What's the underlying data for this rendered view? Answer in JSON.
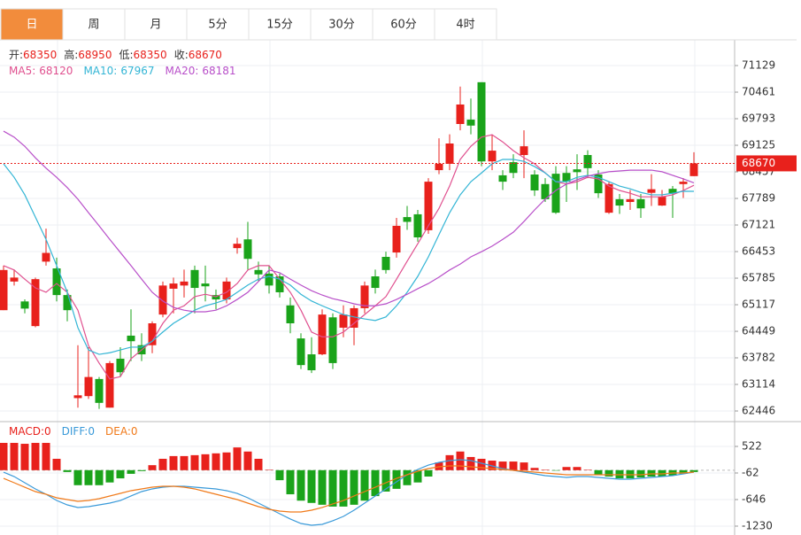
{
  "tabs": [
    "日",
    "周",
    "月",
    "5分",
    "15分",
    "30分",
    "60分",
    "4时"
  ],
  "active_tab": 0,
  "chart_data": [
    {
      "type": "candlestick",
      "header": [
        {
          "label": "开:",
          "value": 68350
        },
        {
          "label": "高:",
          "value": 68950
        },
        {
          "label": "低:",
          "value": 68350
        },
        {
          "label": "收:",
          "value": 68670
        }
      ],
      "up_color": "#e8211c",
      "down_color": "#1aa31a",
      "last_price": 68670,
      "ylim": [
        62201,
        71775
      ],
      "yticks": [
        71129,
        70461,
        69793,
        69125,
        68457,
        67789,
        67121,
        66453,
        65785,
        65117,
        64449,
        63782,
        63114,
        62446
      ],
      "grid": true,
      "open": [
        64980,
        65700,
        65200,
        64580,
        66200,
        66030,
        65360,
        62770,
        62820,
        63250,
        62530,
        63760,
        64340,
        64100,
        64100,
        64870,
        65520,
        65600,
        65990,
        65650,
        65360,
        65250,
        66540,
        66760,
        65990,
        65900,
        65830,
        65100,
        64270,
        63870,
        63870,
        64800,
        64540,
        64540,
        65030,
        65830,
        66320,
        66430,
        67320,
        67390,
        66990,
        68500,
        68660,
        69660,
        69770,
        70710,
        68720,
        68370,
        68700,
        68880,
        68390,
        68150,
        68410,
        68430,
        68520,
        68880,
        68390,
        67430,
        67770,
        67700,
        67770,
        67930,
        67610,
        68030,
        68150,
        68350
      ],
      "high": [
        66100,
        66000,
        65250,
        65800,
        67030,
        66300,
        65500,
        64100,
        64050,
        63300,
        63700,
        64050,
        65000,
        64400,
        64700,
        65700,
        65800,
        66000,
        66100,
        66100,
        65500,
        65800,
        66800,
        67200,
        66200,
        66100,
        65900,
        65300,
        64400,
        64300,
        65000,
        64900,
        65100,
        65100,
        65700,
        66000,
        66450,
        67300,
        67600,
        67500,
        68300,
        69300,
        69400,
        70600,
        70300,
        70710,
        69400,
        68500,
        68900,
        69500,
        68500,
        68300,
        68600,
        68600,
        68900,
        69000,
        68500,
        68200,
        67900,
        68000,
        67900,
        68400,
        68000,
        68100,
        68300,
        68950
      ],
      "low": [
        64980,
        65600,
        64900,
        64550,
        66100,
        65200,
        64700,
        62530,
        62750,
        62500,
        62530,
        63300,
        63700,
        63700,
        63900,
        64800,
        64900,
        65300,
        64900,
        65200,
        65000,
        65150,
        66400,
        66000,
        65700,
        65400,
        65300,
        64400,
        63500,
        63400,
        63850,
        63500,
        64300,
        64100,
        64900,
        65400,
        65900,
        66300,
        67000,
        66700,
        66900,
        68400,
        68500,
        69500,
        69400,
        68600,
        68500,
        68000,
        68300,
        68300,
        67850,
        67700,
        67400,
        67700,
        68000,
        68300,
        67800,
        67400,
        67400,
        67500,
        67300,
        67600,
        67600,
        67300,
        67800,
        68350
      ],
      "close": [
        65990,
        65800,
        65020,
        65760,
        66420,
        65360,
        64980,
        62840,
        63300,
        62650,
        63650,
        63420,
        64200,
        63870,
        64650,
        65600,
        65650,
        65700,
        65540,
        65580,
        65250,
        65700,
        66650,
        66270,
        65880,
        65600,
        65430,
        64650,
        63600,
        63470,
        64870,
        63650,
        64870,
        65030,
        65600,
        65540,
        65990,
        67100,
        67200,
        66810,
        68210,
        68660,
        69170,
        70150,
        69620,
        68720,
        68990,
        68210,
        68430,
        69100,
        67990,
        67770,
        67430,
        68210,
        68450,
        68550,
        67920,
        68150,
        67610,
        67770,
        67540,
        68020,
        67830,
        67920,
        68210,
        68670
      ],
      "series": [
        {
          "name": "MA5:",
          "current": 68120,
          "color": "#e0508f",
          "values": [
            66100,
            65990,
            65760,
            65540,
            65430,
            65650,
            65430,
            64980,
            64090,
            63650,
            63250,
            63310,
            63760,
            63980,
            64200,
            64650,
            64980,
            65090,
            65320,
            65380,
            65320,
            65430,
            65650,
            65990,
            66100,
            66100,
            65760,
            65430,
            64980,
            64430,
            64310,
            64310,
            64430,
            64650,
            64870,
            65090,
            65320,
            65760,
            66210,
            66650,
            67100,
            67540,
            68100,
            68770,
            69100,
            69330,
            69390,
            69210,
            68990,
            68810,
            68660,
            68430,
            68210,
            68150,
            68210,
            68320,
            68280,
            68100,
            67990,
            67920,
            67830,
            67830,
            67830,
            67880,
            67990,
            68120
          ]
        },
        {
          "name": "MA10:",
          "current": 67967,
          "color": "#33b5d5",
          "values": [
            68660,
            68320,
            67880,
            67320,
            66760,
            66100,
            65430,
            64540,
            63980,
            63870,
            63910,
            63980,
            64050,
            64050,
            64200,
            64430,
            64650,
            64810,
            64980,
            65090,
            65160,
            65250,
            65430,
            65610,
            65760,
            65830,
            65760,
            65610,
            65380,
            65210,
            65090,
            64980,
            64870,
            64810,
            64760,
            64720,
            64810,
            65090,
            65430,
            65830,
            66320,
            66880,
            67430,
            67880,
            68210,
            68430,
            68660,
            68770,
            68770,
            68720,
            68590,
            68430,
            68210,
            68210,
            68320,
            68370,
            68320,
            68210,
            68100,
            68030,
            67940,
            67880,
            67880,
            67920,
            67970,
            67967
          ]
        },
        {
          "name": "MA20:",
          "current": 68181,
          "color": "#b84fc9",
          "values": [
            69480,
            69330,
            69100,
            68810,
            68550,
            68320,
            68060,
            67770,
            67430,
            67100,
            66760,
            66430,
            66100,
            65760,
            65430,
            65210,
            65050,
            64980,
            64940,
            64940,
            64980,
            65090,
            65250,
            65430,
            65700,
            65990,
            65920,
            65760,
            65610,
            65470,
            65360,
            65270,
            65210,
            65140,
            65090,
            65090,
            65140,
            65250,
            65380,
            65520,
            65650,
            65810,
            65990,
            66140,
            66320,
            66450,
            66590,
            66760,
            66940,
            67210,
            67500,
            67770,
            67990,
            68150,
            68260,
            68350,
            68410,
            68460,
            68480,
            68500,
            68500,
            68500,
            68460,
            68370,
            68280,
            68181
          ]
        }
      ]
    },
    {
      "type": "bar",
      "name": "MACD:",
      "current": 0,
      "color": "#e8211c",
      "up_color": "#e8211c",
      "down_color": "#1aa31a",
      "ylim": [
        -1425,
        1048
      ],
      "yticks": [
        522,
        -62,
        -646,
        -1230
      ],
      "grid": true,
      "values": [
        600,
        600,
        580,
        600,
        600,
        250,
        -40,
        -330,
        -330,
        -330,
        -270,
        -180,
        -80,
        -20,
        110,
        250,
        310,
        310,
        330,
        350,
        370,
        390,
        500,
        410,
        250,
        10,
        -220,
        -530,
        -670,
        -720,
        -760,
        -800,
        -800,
        -760,
        -670,
        -570,
        -470,
        -410,
        -330,
        -270,
        -140,
        170,
        330,
        410,
        290,
        250,
        210,
        190,
        190,
        170,
        50,
        10,
        -10,
        70,
        70,
        10,
        -100,
        -140,
        -180,
        -180,
        -160,
        -140,
        -140,
        -120,
        -80,
        -40
      ],
      "series": [
        {
          "name": "DIFF:",
          "current": 0,
          "color": "#3a9ad9",
          "values": [
            -43,
            -140,
            -276,
            -412,
            -529,
            -666,
            -763,
            -821,
            -802,
            -763,
            -724,
            -666,
            -568,
            -471,
            -412,
            -374,
            -354,
            -354,
            -374,
            -393,
            -412,
            -451,
            -510,
            -607,
            -724,
            -841,
            -958,
            -1074,
            -1172,
            -1211,
            -1191,
            -1113,
            -1016,
            -880,
            -724,
            -568,
            -412,
            -257,
            -101,
            16,
            113,
            172,
            211,
            230,
            211,
            152,
            94,
            35,
            -4,
            -43,
            -81,
            -120,
            -140,
            -159,
            -140,
            -140,
            -159,
            -179,
            -198,
            -198,
            -179,
            -159,
            -140,
            -120,
            -81,
            -43
          ]
        },
        {
          "name": "DEA:",
          "current": 0,
          "color": "#f07a1a",
          "values": [
            -179,
            -276,
            -374,
            -471,
            -529,
            -607,
            -646,
            -685,
            -666,
            -627,
            -568,
            -510,
            -451,
            -412,
            -374,
            -354,
            -354,
            -374,
            -412,
            -471,
            -529,
            -588,
            -646,
            -724,
            -802,
            -860,
            -899,
            -919,
            -919,
            -880,
            -821,
            -743,
            -666,
            -568,
            -471,
            -374,
            -276,
            -179,
            -101,
            -23,
            35,
            74,
            94,
            94,
            74,
            55,
            35,
            16,
            -4,
            -23,
            -43,
            -62,
            -81,
            -101,
            -101,
            -101,
            -101,
            -101,
            -101,
            -101,
            -101,
            -81,
            -81,
            -62,
            -62,
            -43
          ]
        }
      ]
    }
  ]
}
